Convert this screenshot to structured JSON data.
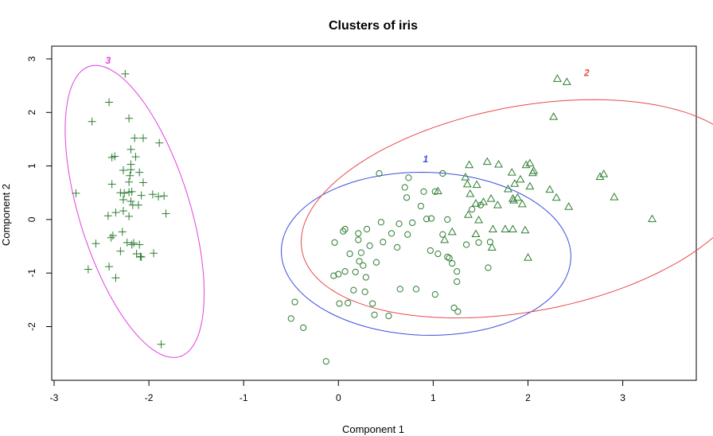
{
  "chart_data": {
    "type": "scatter",
    "title": "Clusters of iris",
    "xlabel": "Component 1",
    "ylabel": "Component 2",
    "xlim": [
      -3.2,
      3.7
    ],
    "ylim": [
      -3.0,
      3.1
    ],
    "xticks": [
      "-3",
      "-2",
      "-1",
      "0",
      "1",
      "2",
      "3"
    ],
    "yticks": [
      "-2",
      "-1",
      "0",
      "1",
      "2",
      "3"
    ],
    "grid": false,
    "point_color": "#2e7d32",
    "clusters": [
      {
        "label": "1",
        "color": "#3a4fe0",
        "marker": "circle",
        "ellipse": {
          "cx": 0.925,
          "cy": -0.64,
          "rx": 1.55,
          "ry": 1.5,
          "angle_deg": -42
        },
        "label_pos": [
          0.92,
          1.13
        ],
        "points": [
          [
            0.43,
            0.86
          ],
          [
            0.74,
            0.78
          ],
          [
            1.1,
            0.86
          ],
          [
            0.7,
            0.6
          ],
          [
            0.9,
            0.52
          ],
          [
            0.72,
            0.41
          ],
          [
            1.02,
            0.52
          ],
          [
            0.87,
            0.25
          ],
          [
            0.98,
            0.02
          ],
          [
            0.93,
            0.01
          ],
          [
            0.45,
            -0.05
          ],
          [
            0.64,
            -0.08
          ],
          [
            0.78,
            -0.06
          ],
          [
            0.3,
            -0.18
          ],
          [
            0.56,
            -0.26
          ],
          [
            0.73,
            -0.28
          ],
          [
            0.21,
            -0.26
          ],
          [
            0.21,
            -0.38
          ],
          [
            0.07,
            -0.18
          ],
          [
            0.05,
            -0.22
          ],
          [
            -0.04,
            -0.43
          ],
          [
            0.47,
            -0.42
          ],
          [
            0.33,
            -0.49
          ],
          [
            0.12,
            -0.64
          ],
          [
            0.24,
            -0.62
          ],
          [
            0.62,
            -0.52
          ],
          [
            0.97,
            -0.58
          ],
          [
            1.05,
            -0.64
          ],
          [
            1.15,
            -0.7
          ],
          [
            1.17,
            -0.72
          ],
          [
            1.2,
            -0.82
          ],
          [
            1.25,
            -0.97
          ],
          [
            0.4,
            -0.8
          ],
          [
            0.22,
            -0.78
          ],
          [
            0.26,
            -0.86
          ],
          [
            0.18,
            -0.98
          ],
          [
            0.29,
            -1.08
          ],
          [
            0.07,
            -0.97
          ],
          [
            0.0,
            -1.02
          ],
          [
            -0.05,
            -1.05
          ],
          [
            1.25,
            -1.16
          ],
          [
            1.58,
            -0.9
          ],
          [
            0.16,
            -1.32
          ],
          [
            0.28,
            -1.35
          ],
          [
            0.65,
            -1.3
          ],
          [
            0.82,
            -1.3
          ],
          [
            1.02,
            -1.4
          ],
          [
            1.22,
            -1.65
          ],
          [
            1.26,
            -1.72
          ],
          [
            0.53,
            -1.8
          ],
          [
            0.38,
            -1.78
          ],
          [
            0.36,
            -1.57
          ],
          [
            0.1,
            -1.56
          ],
          [
            0.01,
            -1.57
          ],
          [
            -0.46,
            -1.54
          ],
          [
            -0.5,
            -1.85
          ],
          [
            -0.37,
            -2.02
          ],
          [
            -0.13,
            -2.65
          ],
          [
            1.15,
            0.0
          ],
          [
            1.1,
            -0.28
          ],
          [
            1.35,
            -0.47
          ],
          [
            1.48,
            -0.43
          ],
          [
            1.6,
            -0.42
          ],
          [
            1.41,
            0.19
          ],
          [
            1.5,
            0.27
          ]
        ]
      },
      {
        "label": "2",
        "color": "#e84a4a",
        "marker": "triangle",
        "ellipse": {
          "cx": 1.97,
          "cy": 0.2,
          "rx": 2.55,
          "ry": 1.8,
          "angle_deg": 32
        },
        "label_pos": [
          2.62,
          2.74
        ],
        "points": [
          [
            2.31,
            2.63
          ],
          [
            2.41,
            2.57
          ],
          [
            2.27,
            1.92
          ],
          [
            1.38,
            1.02
          ],
          [
            1.57,
            1.08
          ],
          [
            1.69,
            1.03
          ],
          [
            2.02,
            1.05
          ],
          [
            1.98,
            1.02
          ],
          [
            2.06,
            0.91
          ],
          [
            2.05,
            0.87
          ],
          [
            1.83,
            0.88
          ],
          [
            1.92,
            0.75
          ],
          [
            2.76,
            0.8
          ],
          [
            2.8,
            0.85
          ],
          [
            1.34,
            0.79
          ],
          [
            1.36,
            0.66
          ],
          [
            1.46,
            0.65
          ],
          [
            1.86,
            0.67
          ],
          [
            1.79,
            0.57
          ],
          [
            1.89,
            0.41
          ],
          [
            1.85,
            0.36
          ],
          [
            1.94,
            0.29
          ],
          [
            1.84,
            0.39
          ],
          [
            2.02,
            0.62
          ],
          [
            2.23,
            0.56
          ],
          [
            2.43,
            0.24
          ],
          [
            2.3,
            0.41
          ],
          [
            2.91,
            0.42
          ],
          [
            3.31,
            0.01
          ],
          [
            1.05,
            0.53
          ],
          [
            1.39,
            0.48
          ],
          [
            1.61,
            0.39
          ],
          [
            1.53,
            0.33
          ],
          [
            1.45,
            0.3
          ],
          [
            1.68,
            0.27
          ],
          [
            1.37,
            0.09
          ],
          [
            1.48,
            -0.01
          ],
          [
            1.76,
            -0.18
          ],
          [
            1.84,
            -0.18
          ],
          [
            1.97,
            -0.2
          ],
          [
            1.63,
            -0.18
          ],
          [
            1.2,
            -0.23
          ],
          [
            1.12,
            -0.38
          ],
          [
            1.45,
            -0.27
          ],
          [
            1.62,
            -0.52
          ],
          [
            2.0,
            -0.71
          ]
        ]
      },
      {
        "label": "3",
        "color": "#e040e0",
        "marker": "plus",
        "ellipse": {
          "cx": -2.15,
          "cy": 0.15,
          "rx": 2.76,
          "ry": 0.6,
          "angle_deg": -81
        },
        "label_pos": [
          -2.43,
          2.97
        ],
        "points": [
          [
            -2.25,
            2.72
          ],
          [
            -2.42,
            2.19
          ],
          [
            -2.21,
            1.89
          ],
          [
            -2.6,
            1.83
          ],
          [
            -2.15,
            1.52
          ],
          [
            -2.06,
            1.52
          ],
          [
            -1.89,
            1.43
          ],
          [
            -2.19,
            1.31
          ],
          [
            -2.36,
            1.18
          ],
          [
            -2.39,
            1.16
          ],
          [
            -2.14,
            1.17
          ],
          [
            -2.19,
            1.03
          ],
          [
            -2.27,
            0.92
          ],
          [
            -2.19,
            0.93
          ],
          [
            -2.2,
            0.82
          ],
          [
            -2.1,
            0.88
          ],
          [
            -2.21,
            0.7
          ],
          [
            -2.39,
            0.66
          ],
          [
            -2.06,
            0.69
          ],
          [
            -2.3,
            0.5
          ],
          [
            -2.26,
            0.49
          ],
          [
            -2.21,
            0.51
          ],
          [
            -2.18,
            0.52
          ],
          [
            -1.96,
            0.47
          ],
          [
            -2.08,
            0.45
          ],
          [
            -1.9,
            0.43
          ],
          [
            -1.84,
            0.44
          ],
          [
            -2.77,
            0.49
          ],
          [
            -2.27,
            0.37
          ],
          [
            -2.19,
            0.34
          ],
          [
            -2.17,
            0.27
          ],
          [
            -2.11,
            0.27
          ],
          [
            -2.27,
            0.16
          ],
          [
            -2.35,
            0.13
          ],
          [
            -2.21,
            0.06
          ],
          [
            -2.43,
            0.07
          ],
          [
            -1.82,
            0.11
          ],
          [
            -2.28,
            -0.23
          ],
          [
            -2.38,
            -0.3
          ],
          [
            -2.4,
            -0.34
          ],
          [
            -2.23,
            -0.43
          ],
          [
            -2.18,
            -0.47
          ],
          [
            -2.16,
            -0.44
          ],
          [
            -2.56,
            -0.45
          ],
          [
            -2.1,
            -0.47
          ],
          [
            -2.3,
            -0.59
          ],
          [
            -2.13,
            -0.64
          ],
          [
            -2.08,
            -0.7
          ],
          [
            -2.09,
            -0.69
          ],
          [
            -1.95,
            -0.63
          ],
          [
            -2.64,
            -0.93
          ],
          [
            -2.42,
            -0.88
          ],
          [
            -2.35,
            -1.09
          ],
          [
            -1.87,
            -2.33
          ]
        ]
      }
    ]
  }
}
